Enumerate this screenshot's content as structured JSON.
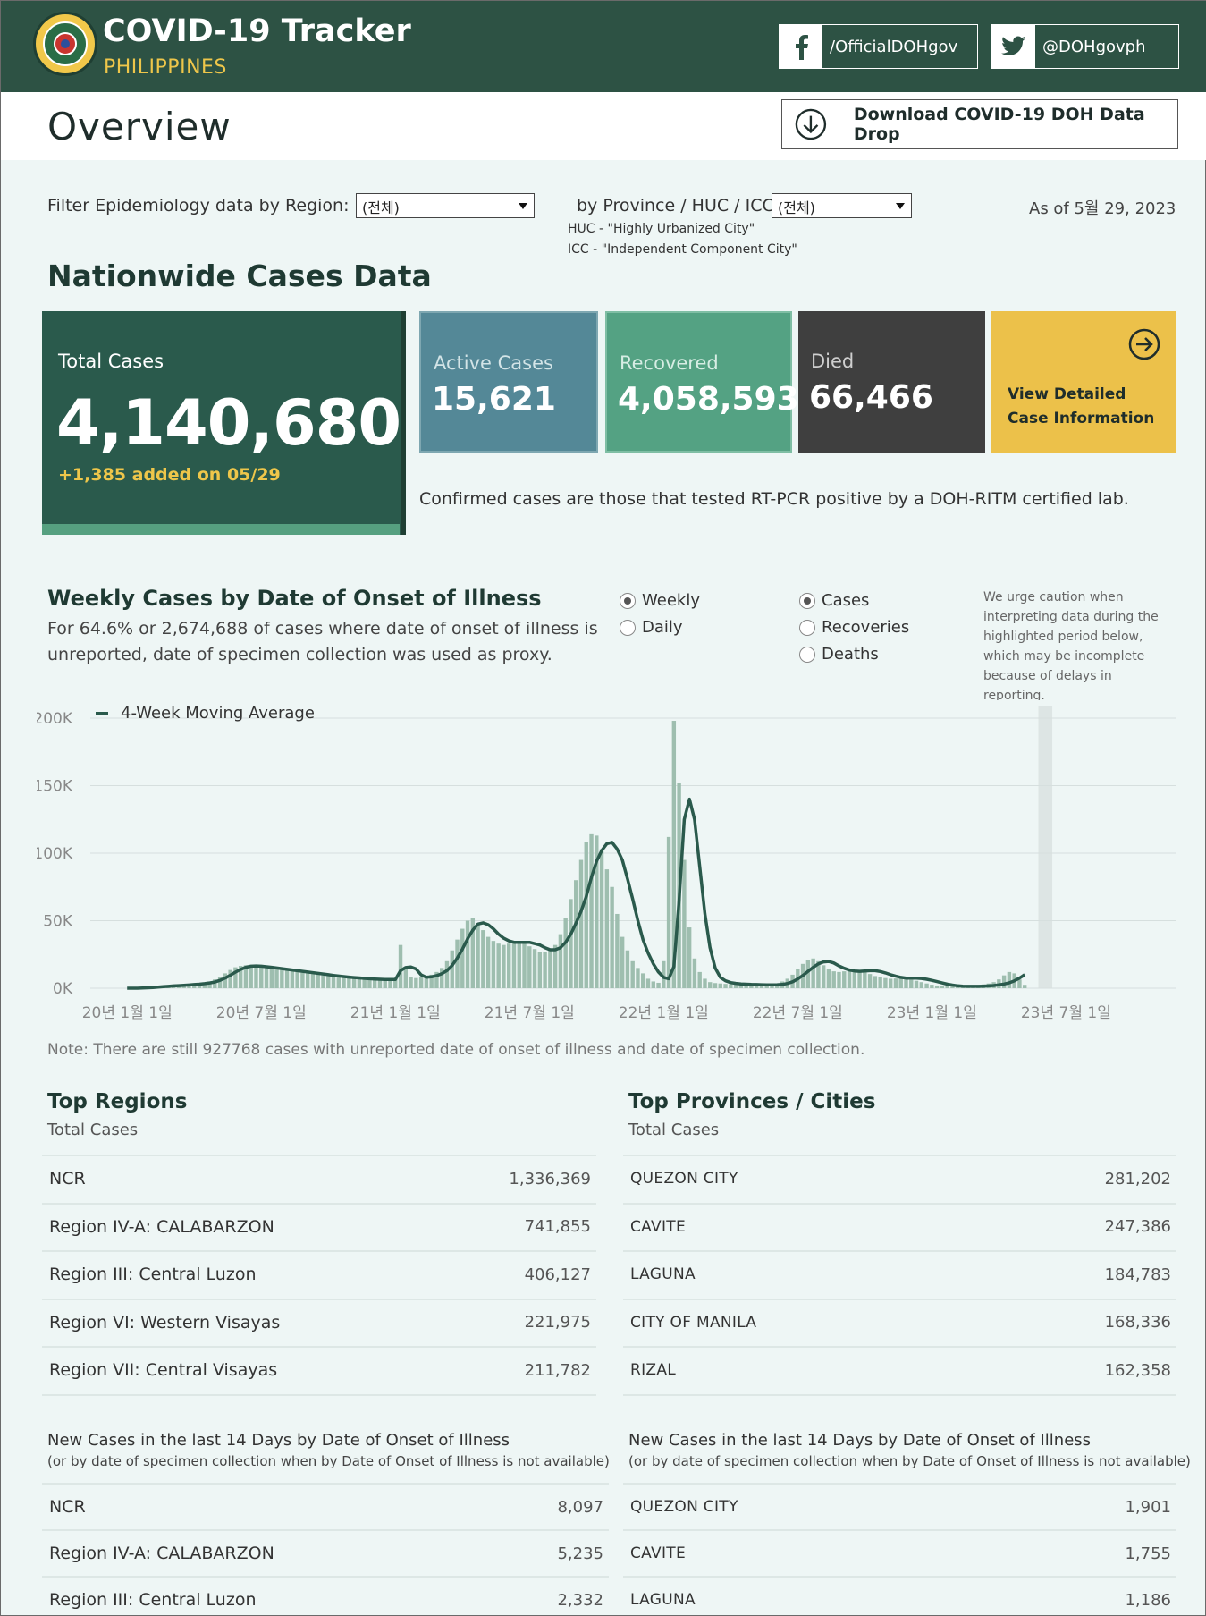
{
  "header": {
    "title": "COVID-19 Tracker",
    "subtitle": "PHILIPPINES",
    "facebook": "/OfficialDOHgov",
    "twitter": "@DOHgovph"
  },
  "overview": {
    "title": "Overview",
    "download_label": "Download COVID-19 DOH Data Drop"
  },
  "filters": {
    "region_label": "Filter Epidemiology data by Region:",
    "region_value": "(전체)",
    "province_label": "by Province / HUC / ICC:",
    "province_value": "(전체)",
    "huc_note": "HUC - \"Highly Urbanized City\"",
    "icc_note": "ICC - \"Independent Component City\"",
    "as_of": "As of 5월 29, 2023"
  },
  "nationwide": {
    "title": "Nationwide Cases Data",
    "total_label": "Total Cases",
    "total_value": "4,140,680",
    "added": "+1,385 added on 05/29",
    "active_label": "Active Cases",
    "active_value": "15,621",
    "recovered_label": "Recovered",
    "recovered_value": "4,058,593",
    "died_label": "Died",
    "died_value": "66,466",
    "detail_line1": "View Detailed",
    "detail_line2": "Case Information",
    "confirmed_note": "Confirmed cases are those that tested RT-PCR positive by a DOH-RITM certified lab."
  },
  "weekly": {
    "title": "Weekly Cases by Date of Onset of Illness",
    "subtitle": "For 64.6% or 2,674,688 of cases where date of onset of illness is unreported, date of specimen collection was used as proxy.",
    "radio_weekly": "Weekly",
    "radio_daily": "Daily",
    "radio_cases": "Cases",
    "radio_recoveries": "Recoveries",
    "radio_deaths": "Deaths",
    "caution": "We urge caution when interpreting data during the highlighted period below, which may be incomplete because of delays in reporting.",
    "note": "Note: There are still 927768 cases with unreported date of onset of illness and date of specimen collection."
  },
  "chart_data": {
    "type": "bar",
    "title": "Weekly Cases by Date of Onset of Illness",
    "xlabel": "",
    "ylabel": "",
    "ylim": [
      0,
      200000
    ],
    "y_ticks": [
      "0K",
      "50K",
      "100K",
      "150K",
      "200K"
    ],
    "y_tick_values": [
      0,
      50000,
      100000,
      150000,
      200000
    ],
    "x_ticks": [
      "20년 1월 1일",
      "20년 7월 1일",
      "21년 1월 1일",
      "21년 7월 1일",
      "22년 1월 1일",
      "22년 7월 1일",
      "23년 1월 1일",
      "23년 7월 1일"
    ],
    "x_tick_weeks": [
      0,
      26,
      52,
      78,
      104,
      130,
      156,
      182
    ],
    "week0_offset": -1,
    "legend": "4-Week Moving Average",
    "highlight_weeks": [
      177,
      179
    ],
    "series": [
      {
        "name": "Weekly Cases",
        "values": [
          0,
          0,
          0,
          300,
          500,
          800,
          1200,
          1500,
          1800,
          2000,
          2200,
          2500,
          2800,
          3200,
          3600,
          4200,
          5000,
          6500,
          8500,
          11000,
          13500,
          15500,
          16500,
          17000,
          16500,
          16000,
          15500,
          15000,
          14500,
          14000,
          13500,
          13000,
          12500,
          12000,
          11500,
          11000,
          10500,
          10000,
          9500,
          9000,
          8500,
          8200,
          8000,
          7800,
          7500,
          7200,
          7000,
          6800,
          6500,
          6500,
          6400,
          6300,
          7000,
          32000,
          16000,
          8000,
          7500,
          8000,
          9000,
          10000,
          12000,
          15000,
          20000,
          28000,
          36000,
          44000,
          50000,
          52000,
          48000,
          43000,
          38000,
          35000,
          33000,
          32000,
          33000,
          34000,
          35000,
          33000,
          31000,
          29000,
          27000,
          27000,
          28000,
          32000,
          40000,
          52000,
          66000,
          80000,
          95000,
          108000,
          114000,
          113000,
          103000,
          88000,
          75000,
          55000,
          38000,
          28000,
          20000,
          15000,
          11000,
          7000,
          5000,
          4000,
          20000,
          112000,
          198000,
          152000,
          95000,
          45000,
          22000,
          12000,
          7000,
          4500,
          3800,
          3500,
          3200,
          3000,
          2800,
          2700,
          2600,
          2500,
          2400,
          2400,
          2600,
          3000,
          3600,
          5000,
          7000,
          10000,
          14000,
          18000,
          21000,
          22000,
          20000,
          17000,
          14000,
          12500,
          12000,
          12500,
          13000,
          13500,
          13000,
          12000,
          10500,
          9000,
          8000,
          7500,
          7000,
          7200,
          7500,
          7000,
          6200,
          5500,
          4500,
          3500,
          2600,
          2000,
          1600,
          1400,
          1300,
          1300,
          1400,
          1500,
          1800,
          2200,
          2800,
          3500,
          4500,
          6500,
          9500,
          12000,
          11000,
          6500,
          2500
        ]
      },
      {
        "name": "4-Week Moving Average",
        "values": [
          0,
          0,
          0,
          100,
          300,
          500,
          800,
          1100,
          1400,
          1700,
          1900,
          2100,
          2400,
          2700,
          3000,
          3400,
          3900,
          4600,
          5800,
          7500,
          9600,
          11900,
          13900,
          15500,
          16300,
          16500,
          16300,
          15900,
          15500,
          15000,
          14500,
          14000,
          13500,
          13000,
          12500,
          12000,
          11500,
          11000,
          10500,
          10000,
          9500,
          9000,
          8600,
          8200,
          7900,
          7600,
          7300,
          7000,
          6800,
          6600,
          6500,
          6400,
          6500,
          13000,
          15300,
          15700,
          14300,
          9900,
          8100,
          8400,
          9300,
          10800,
          13100,
          16800,
          22300,
          29000,
          36500,
          43000,
          47500,
          48400,
          47000,
          44000,
          40000,
          37000,
          35000,
          34000,
          34000,
          34000,
          34000,
          33000,
          32000,
          30000,
          28500,
          28500,
          30000,
          34000,
          40000,
          48000,
          57000,
          68000,
          82000,
          94000,
          102000,
          107000,
          108000,
          103000,
          95000,
          81000,
          66000,
          50000,
          36000,
          26000,
          18000,
          12000,
          8000,
          7000,
          16000,
          65000,
          125000,
          140000,
          125000,
          90000,
          55000,
          30000,
          15000,
          8000,
          5500,
          4200,
          3600,
          3200,
          3000,
          2800,
          2700,
          2600,
          2500,
          2500,
          2600,
          2800,
          3500,
          4800,
          6800,
          9500,
          12500,
          15500,
          18000,
          19500,
          19800,
          18700,
          16500,
          14800,
          13500,
          12800,
          12500,
          12800,
          13000,
          13000,
          12400,
          11300,
          10000,
          8900,
          8000,
          7500,
          7400,
          7400,
          7200,
          6600,
          5800,
          4900,
          3900,
          3000,
          2300,
          1800,
          1500,
          1400,
          1400,
          1400,
          1500,
          1700,
          2000,
          2500,
          3100,
          4000,
          5500,
          7500,
          10000
        ]
      }
    ]
  },
  "top_regions": {
    "title": "Top Regions",
    "subtitle": "Total Cases",
    "rows": [
      {
        "name": "NCR",
        "value": "1,336,369"
      },
      {
        "name": "Region IV-A: CALABARZON",
        "value": "741,855"
      },
      {
        "name": "Region III: Central Luzon",
        "value": "406,127"
      },
      {
        "name": "Region VI: Western Visayas",
        "value": "221,975"
      },
      {
        "name": "Region VII: Central Visayas",
        "value": "211,782"
      }
    ],
    "new_title": "New Cases in the last 14 Days by Date of Onset of Illness",
    "new_sub": "(or by date of specimen collection when by Date of Onset of Illness is not available)",
    "new_rows": [
      {
        "name": "NCR",
        "value": "8,097"
      },
      {
        "name": "Region IV-A: CALABARZON",
        "value": "5,235"
      },
      {
        "name": "Region III: Central Luzon",
        "value": "2,332"
      }
    ]
  },
  "top_provinces": {
    "title": "Top Provinces / Cities",
    "subtitle": "Total Cases",
    "rows": [
      {
        "name": "QUEZON CITY",
        "value": "281,202"
      },
      {
        "name": "CAVITE",
        "value": "247,386"
      },
      {
        "name": "LAGUNA",
        "value": "184,783"
      },
      {
        "name": "CITY OF MANILA",
        "value": "168,336"
      },
      {
        "name": "RIZAL",
        "value": "162,358"
      }
    ],
    "new_title": "New Cases in the last 14 Days by Date of Onset of Illness",
    "new_sub": "(or by date of specimen collection when by Date of Onset of Illness is not available)",
    "new_rows": [
      {
        "name": "QUEZON CITY",
        "value": "1,901"
      },
      {
        "name": "CAVITE",
        "value": "1,755"
      },
      {
        "name": "LAGUNA",
        "value": "1,186"
      }
    ]
  }
}
